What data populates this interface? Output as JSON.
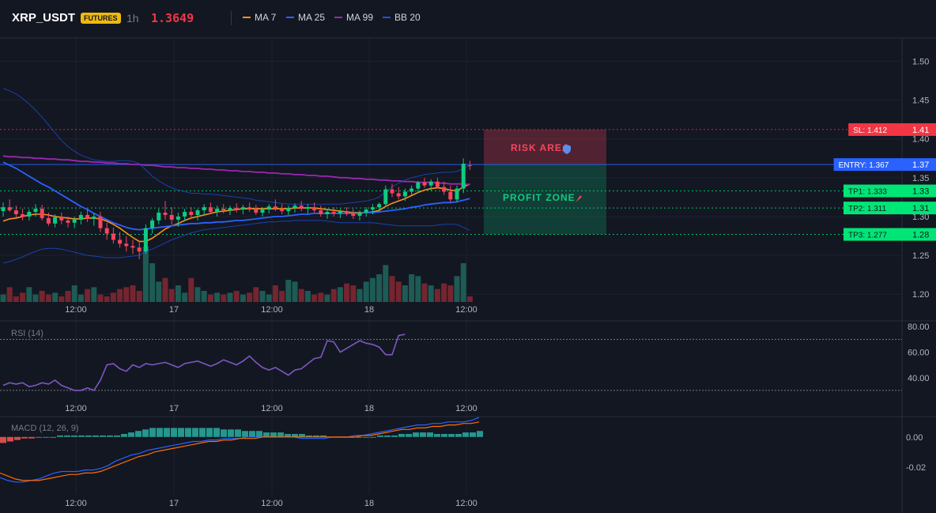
{
  "header": {
    "symbol": "XRP_USDT",
    "badge": "FUTURES",
    "timeframe": "1h",
    "price": "1.3649",
    "legend": [
      {
        "label": "MA 7",
        "color": "#f7931a"
      },
      {
        "label": "MA 25",
        "color": "#2962ff"
      },
      {
        "label": "MA 99",
        "color": "#9c27b0"
      },
      {
        "label": "BB 20",
        "color": "#1e53e5"
      }
    ]
  },
  "colors": {
    "up": "#26a69a",
    "up_bright": "#0ecb81",
    "down": "#f6465d",
    "bg": "#131722",
    "grid": "#1e222d"
  },
  "chart_data": {
    "type": "candlestick",
    "x_tick_labels": [
      "12:00",
      "17",
      "12:00",
      "18",
      "12:00"
    ],
    "price_axis": {
      "ticks": [
        "1.50",
        "1.45",
        "1.40",
        "1.35",
        "1.30",
        "1.25",
        "1.20"
      ],
      "ylim": [
        1.19,
        1.53
      ]
    },
    "levels": [
      {
        "label": "SL: 1.412",
        "value": 1.412,
        "axis_label": "1.41",
        "color": "#f23645"
      },
      {
        "label": "ENTRY: 1.367",
        "value": 1.367,
        "axis_label": "1.37",
        "color": "#2962ff"
      },
      {
        "label": "TP1: 1.333",
        "value": 1.333,
        "axis_label": "1.33",
        "color": "#00e676"
      },
      {
        "label": "TP2: 1.311",
        "value": 1.311,
        "axis_label": "1.31",
        "color": "#00e676"
      },
      {
        "label": "TP3: 1.277",
        "value": 1.277,
        "axis_label": "1.28",
        "color": "#00e676"
      }
    ],
    "zones": {
      "risk_label": "RISK AREA",
      "profit_label": "PROFIT ZONE"
    },
    "candles": [
      [
        1.307,
        1.318,
        1.3,
        1.312
      ],
      [
        1.312,
        1.322,
        1.306,
        1.308
      ],
      [
        1.308,
        1.314,
        1.298,
        1.303
      ],
      [
        1.303,
        1.31,
        1.295,
        1.3
      ],
      [
        1.3,
        1.309,
        1.295,
        1.306
      ],
      [
        1.306,
        1.316,
        1.3,
        1.31
      ],
      [
        1.31,
        1.315,
        1.295,
        1.298
      ],
      [
        1.298,
        1.305,
        1.288,
        1.291
      ],
      [
        1.291,
        1.303,
        1.286,
        1.299
      ],
      [
        1.299,
        1.305,
        1.29,
        1.295
      ],
      [
        1.295,
        1.3,
        1.286,
        1.292
      ],
      [
        1.292,
        1.3,
        1.285,
        1.296
      ],
      [
        1.296,
        1.306,
        1.29,
        1.302
      ],
      [
        1.302,
        1.309,
        1.293,
        1.297
      ],
      [
        1.297,
        1.305,
        1.288,
        1.3
      ],
      [
        1.3,
        1.306,
        1.28,
        1.285
      ],
      [
        1.285,
        1.292,
        1.27,
        1.278
      ],
      [
        1.278,
        1.286,
        1.265,
        1.27
      ],
      [
        1.27,
        1.28,
        1.26,
        1.265
      ],
      [
        1.265,
        1.275,
        1.255,
        1.262
      ],
      [
        1.262,
        1.27,
        1.252,
        1.26
      ],
      [
        1.26,
        1.268,
        1.245,
        1.255
      ],
      [
        1.255,
        1.29,
        1.252,
        1.285
      ],
      [
        1.285,
        1.298,
        1.278,
        1.295
      ],
      [
        1.295,
        1.31,
        1.29,
        1.305
      ],
      [
        1.305,
        1.32,
        1.296,
        1.302
      ],
      [
        1.302,
        1.312,
        1.29,
        1.296
      ],
      [
        1.296,
        1.305,
        1.287,
        1.3
      ],
      [
        1.3,
        1.31,
        1.295,
        1.306
      ],
      [
        1.306,
        1.312,
        1.298,
        1.302
      ],
      [
        1.302,
        1.31,
        1.295,
        1.308
      ],
      [
        1.308,
        1.316,
        1.302,
        1.312
      ],
      [
        1.312,
        1.318,
        1.303,
        1.306
      ],
      [
        1.306,
        1.314,
        1.3,
        1.31
      ],
      [
        1.31,
        1.316,
        1.304,
        1.308
      ],
      [
        1.308,
        1.314,
        1.302,
        1.311
      ],
      [
        1.311,
        1.317,
        1.305,
        1.309
      ],
      [
        1.309,
        1.315,
        1.303,
        1.312
      ],
      [
        1.312,
        1.318,
        1.306,
        1.31
      ],
      [
        1.31,
        1.315,
        1.302,
        1.305
      ],
      [
        1.305,
        1.312,
        1.3,
        1.309
      ],
      [
        1.309,
        1.316,
        1.304,
        1.313
      ],
      [
        1.313,
        1.322,
        1.307,
        1.31
      ],
      [
        1.31,
        1.316,
        1.303,
        1.307
      ],
      [
        1.307,
        1.314,
        1.302,
        1.311
      ],
      [
        1.311,
        1.317,
        1.305,
        1.314
      ],
      [
        1.314,
        1.32,
        1.307,
        1.31
      ],
      [
        1.31,
        1.316,
        1.304,
        1.312
      ],
      [
        1.312,
        1.318,
        1.305,
        1.308
      ],
      [
        1.308,
        1.314,
        1.3,
        1.303
      ],
      [
        1.303,
        1.31,
        1.297,
        1.306
      ],
      [
        1.306,
        1.312,
        1.3,
        1.304
      ],
      [
        1.304,
        1.31,
        1.298,
        1.307
      ],
      [
        1.307,
        1.312,
        1.301,
        1.304
      ],
      [
        1.304,
        1.31,
        1.297,
        1.301
      ],
      [
        1.301,
        1.308,
        1.295,
        1.305
      ],
      [
        1.305,
        1.312,
        1.3,
        1.309
      ],
      [
        1.309,
        1.316,
        1.303,
        1.312
      ],
      [
        1.312,
        1.318,
        1.306,
        1.316
      ],
      [
        1.316,
        1.34,
        1.312,
        1.335
      ],
      [
        1.335,
        1.342,
        1.325,
        1.33
      ],
      [
        1.33,
        1.338,
        1.322,
        1.326
      ],
      [
        1.326,
        1.336,
        1.32,
        1.332
      ],
      [
        1.332,
        1.34,
        1.328,
        1.336
      ],
      [
        1.336,
        1.346,
        1.33,
        1.344
      ],
      [
        1.344,
        1.35,
        1.337,
        1.34
      ],
      [
        1.34,
        1.348,
        1.333,
        1.345
      ],
      [
        1.345,
        1.35,
        1.336,
        1.338
      ],
      [
        1.338,
        1.345,
        1.328,
        1.332
      ],
      [
        1.332,
        1.34,
        1.318,
        1.322
      ],
      [
        1.322,
        1.34,
        1.318,
        1.336
      ],
      [
        1.336,
        1.375,
        1.33,
        1.368
      ],
      [
        1.366,
        1.372,
        1.36,
        1.365
      ]
    ],
    "volume": [
      8,
      16,
      6,
      10,
      16,
      8,
      12,
      8,
      10,
      6,
      12,
      18,
      8,
      14,
      16,
      8,
      6,
      10,
      14,
      16,
      18,
      12,
      60,
      42,
      22,
      26,
      14,
      18,
      10,
      26,
      16,
      12,
      8,
      10,
      8,
      10,
      12,
      8,
      10,
      16,
      12,
      8,
      18,
      12,
      24,
      22,
      14,
      12,
      8,
      10,
      8,
      14,
      16,
      20,
      18,
      14,
      22,
      26,
      30,
      40,
      28,
      22,
      18,
      30,
      28,
      20,
      18,
      14,
      20,
      18,
      28,
      42,
      6
    ],
    "series": [
      {
        "name": "MA 7",
        "color": "#f7931a",
        "values": [
          1.294,
          1.297,
          1.298,
          1.3,
          1.302,
          1.303,
          1.303,
          1.302,
          1.3,
          1.299,
          1.298,
          1.297,
          1.297,
          1.298,
          1.298,
          1.297,
          1.294,
          1.29,
          1.285,
          1.279,
          1.273,
          1.268,
          1.268,
          1.272,
          1.278,
          1.284,
          1.288,
          1.291,
          1.295,
          1.298,
          1.3,
          1.302,
          1.304,
          1.306,
          1.307,
          1.308,
          1.309,
          1.31,
          1.31,
          1.31,
          1.31,
          1.31,
          1.31,
          1.31,
          1.31,
          1.311,
          1.311,
          1.311,
          1.311,
          1.31,
          1.309,
          1.308,
          1.307,
          1.306,
          1.305,
          1.305,
          1.305,
          1.306,
          1.308,
          1.313,
          1.317,
          1.32,
          1.323,
          1.327,
          1.331,
          1.334,
          1.336,
          1.337,
          1.336,
          1.334,
          1.333,
          1.338,
          1.342
        ]
      },
      {
        "name": "MA 25",
        "color": "#2962ff",
        "values": [
          1.37,
          1.366,
          1.362,
          1.357,
          1.352,
          1.347,
          1.342,
          1.338,
          1.333,
          1.328,
          1.323,
          1.318,
          1.313,
          1.309,
          1.304,
          1.3,
          1.296,
          1.292,
          1.289,
          1.286,
          1.284,
          1.283,
          1.284,
          1.285,
          1.286,
          1.287,
          1.288,
          1.289,
          1.29,
          1.291,
          1.291,
          1.292,
          1.292,
          1.293,
          1.293,
          1.294,
          1.295,
          1.295,
          1.296,
          1.297,
          1.298,
          1.299,
          1.3,
          1.3,
          1.301,
          1.302,
          1.303,
          1.303,
          1.304,
          1.304,
          1.304,
          1.304,
          1.304,
          1.304,
          1.304,
          1.304,
          1.305,
          1.305,
          1.306,
          1.307,
          1.308,
          1.309,
          1.31,
          1.312,
          1.313,
          1.315,
          1.316,
          1.317,
          1.318,
          1.318,
          1.319,
          1.321,
          1.323
        ]
      },
      {
        "name": "MA 99",
        "color": "#9c27b0",
        "values": [
          1.378,
          1.377,
          1.377,
          1.376,
          1.376,
          1.375,
          1.375,
          1.374,
          1.374,
          1.373,
          1.373,
          1.372,
          1.371,
          1.371,
          1.37,
          1.37,
          1.369,
          1.369,
          1.368,
          1.368,
          1.367,
          1.367,
          1.366,
          1.366,
          1.365,
          1.364,
          1.364,
          1.363,
          1.363,
          1.362,
          1.362,
          1.361,
          1.361,
          1.36,
          1.36,
          1.359,
          1.359,
          1.358,
          1.358,
          1.357,
          1.357,
          1.356,
          1.356,
          1.355,
          1.355,
          1.354,
          1.354,
          1.353,
          1.353,
          1.352,
          1.352,
          1.351,
          1.35,
          1.35,
          1.349,
          1.349,
          1.348,
          1.348,
          1.347,
          1.347,
          1.346,
          1.346,
          1.345,
          1.345,
          1.344,
          1.344,
          1.344,
          1.343,
          1.343,
          1.342,
          1.342,
          1.342,
          1.341
        ]
      },
      {
        "name": "BB upper",
        "color": "#1e53e5",
        "values": [
          1.465,
          1.462,
          1.458,
          1.452,
          1.445,
          1.437,
          1.428,
          1.418,
          1.408,
          1.398,
          1.39,
          1.384,
          1.379,
          1.376,
          1.373,
          1.372,
          1.371,
          1.371,
          1.372,
          1.372,
          1.371,
          1.368,
          1.36,
          1.352,
          1.346,
          1.341,
          1.337,
          1.334,
          1.332,
          1.33,
          1.33,
          1.329,
          1.329,
          1.328,
          1.327,
          1.326,
          1.325,
          1.324,
          1.323,
          1.321,
          1.32,
          1.319,
          1.318,
          1.317,
          1.316,
          1.316,
          1.316,
          1.316,
          1.316,
          1.316,
          1.316,
          1.316,
          1.316,
          1.317,
          1.318,
          1.319,
          1.32,
          1.322,
          1.325,
          1.332,
          1.338,
          1.343,
          1.347,
          1.35,
          1.352,
          1.354,
          1.355,
          1.356,
          1.357,
          1.357,
          1.358,
          1.362,
          1.366
        ]
      },
      {
        "name": "BB lower",
        "color": "#1e53e5",
        "values": [
          1.24,
          1.242,
          1.245,
          1.248,
          1.252,
          1.255,
          1.258,
          1.259,
          1.259,
          1.258,
          1.256,
          1.254,
          1.252,
          1.25,
          1.249,
          1.248,
          1.247,
          1.247,
          1.247,
          1.248,
          1.249,
          1.25,
          1.255,
          1.258,
          1.262,
          1.266,
          1.27,
          1.273,
          1.276,
          1.279,
          1.281,
          1.283,
          1.284,
          1.285,
          1.286,
          1.287,
          1.288,
          1.289,
          1.29,
          1.291,
          1.292,
          1.293,
          1.293,
          1.294,
          1.294,
          1.295,
          1.295,
          1.295,
          1.295,
          1.295,
          1.294,
          1.293,
          1.292,
          1.292,
          1.292,
          1.292,
          1.292,
          1.292,
          1.291,
          1.29,
          1.289,
          1.288,
          1.288,
          1.288,
          1.288,
          1.288,
          1.288,
          1.289,
          1.29,
          1.29,
          1.29,
          1.286,
          1.282
        ]
      }
    ],
    "rsi": {
      "label": "RSI (14)",
      "ticks": [
        "80.00",
        "60.00",
        "40.00"
      ],
      "ylim": [
        25,
        82
      ],
      "levels": [
        70,
        30
      ],
      "color": "#7e57c2",
      "values": [
        34,
        36,
        35,
        36,
        33,
        34,
        36,
        35,
        38,
        34,
        32,
        30,
        30,
        32,
        30,
        38,
        50,
        51,
        47,
        45,
        50,
        48,
        51,
        50,
        51,
        52,
        50,
        48,
        51,
        52,
        53,
        51,
        49,
        51,
        54,
        52,
        50,
        53,
        57,
        52,
        48,
        46,
        48,
        45,
        42,
        46,
        47,
        51,
        55,
        56,
        69,
        68,
        60,
        63,
        66,
        69,
        67,
        66,
        64,
        58,
        58,
        73,
        74
      ]
    },
    "macd": {
      "label": "MACD (12, 26, 9)",
      "ticks": [
        "0.00",
        "-0.02"
      ],
      "ylim": [
        -0.038,
        0.012
      ],
      "histogram": [
        -0.004,
        -0.003,
        -0.002,
        -0.001,
        -0.001,
        0.0,
        0.0,
        0.0,
        0.001,
        0.001,
        0.001,
        0.001,
        0.001,
        0.001,
        0.001,
        0.001,
        0.001,
        0.002,
        0.003,
        0.004,
        0.005,
        0.006,
        0.006,
        0.006,
        0.006,
        0.006,
        0.006,
        0.006,
        0.006,
        0.006,
        0.006,
        0.005,
        0.005,
        0.005,
        0.004,
        0.004,
        0.004,
        0.003,
        0.003,
        0.003,
        0.002,
        0.002,
        0.002,
        0.001,
        0.001,
        0.001,
        0.0,
        0.0,
        0.0,
        0.0,
        0.0,
        0.0,
        0.0,
        0.001,
        0.001,
        0.001,
        0.002,
        0.002,
        0.003,
        0.003,
        0.003,
        0.002,
        0.002,
        0.002,
        0.002,
        0.003,
        0.003,
        0.004
      ],
      "macd_line": [
        -0.027,
        -0.029,
        -0.03,
        -0.03,
        -0.029,
        -0.028,
        -0.026,
        -0.024,
        -0.023,
        -0.023,
        -0.023,
        -0.022,
        -0.022,
        -0.021,
        -0.019,
        -0.016,
        -0.014,
        -0.012,
        -0.011,
        -0.009,
        -0.008,
        -0.007,
        -0.006,
        -0.005,
        -0.004,
        -0.003,
        -0.003,
        -0.002,
        -0.002,
        -0.001,
        -0.001,
        -0.001,
        0.0,
        0.0,
        0.0,
        0.0,
        0.0,
        0.0,
        0.0,
        -0.001,
        -0.001,
        -0.001,
        -0.001,
        0.0,
        0.0,
        0.0,
        0.001,
        0.001,
        0.002,
        0.003,
        0.004,
        0.005,
        0.006,
        0.007,
        0.008,
        0.008,
        0.009,
        0.009,
        0.01,
        0.01,
        0.01,
        0.011,
        0.013
      ],
      "signal_line": [
        -0.024,
        -0.026,
        -0.028,
        -0.029,
        -0.029,
        -0.029,
        -0.028,
        -0.027,
        -0.026,
        -0.025,
        -0.025,
        -0.024,
        -0.024,
        -0.023,
        -0.021,
        -0.019,
        -0.017,
        -0.015,
        -0.013,
        -0.012,
        -0.01,
        -0.009,
        -0.008,
        -0.007,
        -0.006,
        -0.005,
        -0.004,
        -0.003,
        -0.003,
        -0.002,
        -0.002,
        -0.001,
        -0.001,
        -0.001,
        0.0,
        0.0,
        0.0,
        0.0,
        0.0,
        0.0,
        0.0,
        0.0,
        0.0,
        0.0,
        0.0,
        0.0,
        0.0,
        0.001,
        0.001,
        0.002,
        0.003,
        0.004,
        0.005,
        0.005,
        0.006,
        0.006,
        0.007,
        0.007,
        0.008,
        0.008,
        0.009,
        0.009,
        0.01
      ]
    }
  }
}
